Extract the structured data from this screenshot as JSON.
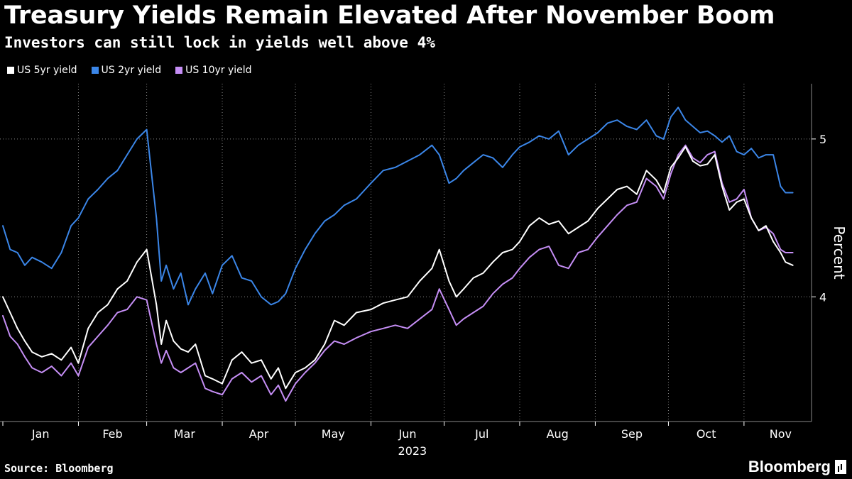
{
  "title": "Treasury Yields Remain Elevated After November Boom",
  "subtitle": "Investors can still lock in yields well above 4%",
  "source": "Source: Bloomberg",
  "brand": "Bloomberg",
  "colors": {
    "background": "#000000",
    "us5": "#ffffff",
    "us2": "#3b86e8",
    "us10": "#c58ef5",
    "grid": "#8a8a8a",
    "text": "#ffffff"
  },
  "chart_data": {
    "type": "line",
    "title": "Treasury Yields Remain Elevated After November Boom",
    "subtitle": "Investors can still lock in yields well above 4%",
    "xlabel": "2023",
    "ylabel": "Percent",
    "ylim": [
      3.21,
      5.35
    ],
    "xlim": [
      0,
      325
    ],
    "yticks": [
      4,
      5
    ],
    "grid": true,
    "legend_position": "top-left",
    "months": [
      {
        "label": "Jan",
        "start": 0
      },
      {
        "label": "Feb",
        "start": 31
      },
      {
        "label": "Mar",
        "start": 59
      },
      {
        "label": "Apr",
        "start": 90
      },
      {
        "label": "May",
        "start": 120
      },
      {
        "label": "Jun",
        "start": 151
      },
      {
        "label": "Jul",
        "start": 181
      },
      {
        "label": "Aug",
        "start": 212
      },
      {
        "label": "Sep",
        "start": 243
      },
      {
        "label": "Oct",
        "start": 273
      },
      {
        "label": "Nov",
        "start": 304
      }
    ],
    "year_label": "2023",
    "series": [
      {
        "name": "US 5yr yield",
        "key": "us5",
        "x": [
          0,
          3,
          6,
          9,
          12,
          16,
          20,
          24,
          28,
          31,
          35,
          39,
          43,
          47,
          51,
          55,
          59,
          63,
          65,
          67,
          70,
          73,
          76,
          79,
          83,
          86,
          90,
          94,
          98,
          102,
          106,
          110,
          113,
          116,
          120,
          124,
          128,
          132,
          136,
          140,
          145,
          151,
          156,
          161,
          166,
          171,
          176,
          179,
          183,
          186,
          189,
          193,
          197,
          201,
          205,
          209,
          212,
          216,
          220,
          224,
          228,
          232,
          236,
          240,
          244,
          248,
          252,
          256,
          260,
          264,
          268,
          271,
          274,
          277,
          280,
          283,
          286,
          289,
          292,
          295,
          298,
          301,
          304,
          307,
          310,
          313,
          316,
          319,
          321,
          324
        ],
        "values": [
          4.0,
          3.9,
          3.8,
          3.72,
          3.65,
          3.62,
          3.64,
          3.6,
          3.68,
          3.58,
          3.8,
          3.9,
          3.95,
          4.05,
          4.1,
          4.22,
          4.3,
          3.95,
          3.7,
          3.85,
          3.72,
          3.67,
          3.65,
          3.7,
          3.5,
          3.48,
          3.45,
          3.6,
          3.65,
          3.58,
          3.6,
          3.48,
          3.55,
          3.42,
          3.52,
          3.55,
          3.6,
          3.7,
          3.85,
          3.82,
          3.9,
          3.92,
          3.96,
          3.98,
          4.0,
          4.1,
          4.18,
          4.3,
          4.1,
          4.0,
          4.05,
          4.12,
          4.15,
          4.22,
          4.28,
          4.3,
          4.35,
          4.45,
          4.5,
          4.46,
          4.48,
          4.4,
          4.44,
          4.48,
          4.56,
          4.62,
          4.68,
          4.7,
          4.65,
          4.8,
          4.74,
          4.66,
          4.82,
          4.88,
          4.95,
          4.86,
          4.83,
          4.84,
          4.9,
          4.7,
          4.55,
          4.6,
          4.62,
          4.5,
          4.42,
          4.45,
          4.35,
          4.28,
          4.22,
          4.2
        ],
        "end_value": 4.2
      },
      {
        "name": "US 2yr yield",
        "key": "us2",
        "x": [
          0,
          3,
          6,
          9,
          12,
          16,
          20,
          24,
          28,
          31,
          35,
          39,
          43,
          47,
          51,
          55,
          59,
          63,
          65,
          67,
          70,
          73,
          76,
          79,
          83,
          86,
          90,
          94,
          98,
          102,
          106,
          110,
          113,
          116,
          120,
          124,
          128,
          132,
          136,
          140,
          145,
          151,
          156,
          161,
          166,
          171,
          176,
          179,
          183,
          186,
          189,
          193,
          197,
          201,
          205,
          209,
          212,
          216,
          220,
          224,
          228,
          232,
          236,
          240,
          244,
          248,
          252,
          256,
          260,
          264,
          268,
          271,
          274,
          277,
          280,
          283,
          286,
          289,
          292,
          295,
          298,
          301,
          304,
          307,
          310,
          313,
          316,
          319,
          321,
          324
        ],
        "values": [
          4.45,
          4.3,
          4.28,
          4.2,
          4.25,
          4.22,
          4.18,
          4.28,
          4.45,
          4.5,
          4.62,
          4.68,
          4.75,
          4.8,
          4.9,
          5.0,
          5.06,
          4.5,
          4.1,
          4.2,
          4.05,
          4.15,
          3.95,
          4.05,
          4.15,
          4.02,
          4.2,
          4.26,
          4.12,
          4.1,
          4.0,
          3.95,
          3.97,
          4.02,
          4.18,
          4.3,
          4.4,
          4.48,
          4.52,
          4.58,
          4.62,
          4.72,
          4.8,
          4.82,
          4.86,
          4.9,
          4.96,
          4.9,
          4.72,
          4.75,
          4.8,
          4.85,
          4.9,
          4.88,
          4.82,
          4.9,
          4.95,
          4.98,
          5.02,
          5.0,
          5.05,
          4.9,
          4.96,
          5.0,
          5.04,
          5.1,
          5.12,
          5.08,
          5.06,
          5.12,
          5.02,
          5.0,
          5.14,
          5.2,
          5.12,
          5.08,
          5.04,
          5.05,
          5.02,
          4.98,
          5.02,
          4.92,
          4.9,
          4.94,
          4.88,
          4.9,
          4.9,
          4.7,
          4.66,
          4.66
        ],
        "end_value": 4.66
      },
      {
        "name": "US 10yr yield",
        "key": "us10",
        "x": [
          0,
          3,
          6,
          9,
          12,
          16,
          20,
          24,
          28,
          31,
          35,
          39,
          43,
          47,
          51,
          55,
          59,
          63,
          65,
          67,
          70,
          73,
          76,
          79,
          83,
          86,
          90,
          94,
          98,
          102,
          106,
          110,
          113,
          116,
          120,
          124,
          128,
          132,
          136,
          140,
          145,
          151,
          156,
          161,
          166,
          171,
          176,
          179,
          183,
          186,
          189,
          193,
          197,
          201,
          205,
          209,
          212,
          216,
          220,
          224,
          228,
          232,
          236,
          240,
          244,
          248,
          252,
          256,
          260,
          264,
          268,
          271,
          274,
          277,
          280,
          283,
          286,
          289,
          292,
          295,
          298,
          301,
          304,
          307,
          310,
          313,
          316,
          319,
          321,
          324
        ],
        "values": [
          3.88,
          3.75,
          3.7,
          3.62,
          3.55,
          3.52,
          3.56,
          3.5,
          3.58,
          3.5,
          3.68,
          3.75,
          3.82,
          3.9,
          3.92,
          4.0,
          3.98,
          3.7,
          3.58,
          3.66,
          3.55,
          3.52,
          3.55,
          3.58,
          3.42,
          3.4,
          3.38,
          3.48,
          3.52,
          3.46,
          3.5,
          3.38,
          3.44,
          3.34,
          3.45,
          3.52,
          3.58,
          3.66,
          3.72,
          3.7,
          3.74,
          3.78,
          3.8,
          3.82,
          3.8,
          3.86,
          3.92,
          4.05,
          3.92,
          3.82,
          3.86,
          3.9,
          3.94,
          4.02,
          4.08,
          4.12,
          4.18,
          4.25,
          4.3,
          4.32,
          4.2,
          4.18,
          4.28,
          4.3,
          4.38,
          4.45,
          4.52,
          4.58,
          4.6,
          4.75,
          4.7,
          4.62,
          4.78,
          4.9,
          4.96,
          4.88,
          4.85,
          4.9,
          4.92,
          4.72,
          4.6,
          4.62,
          4.68,
          4.5,
          4.42,
          4.44,
          4.4,
          4.3,
          4.28,
          4.28
        ],
        "end_value": 4.28
      }
    ]
  }
}
